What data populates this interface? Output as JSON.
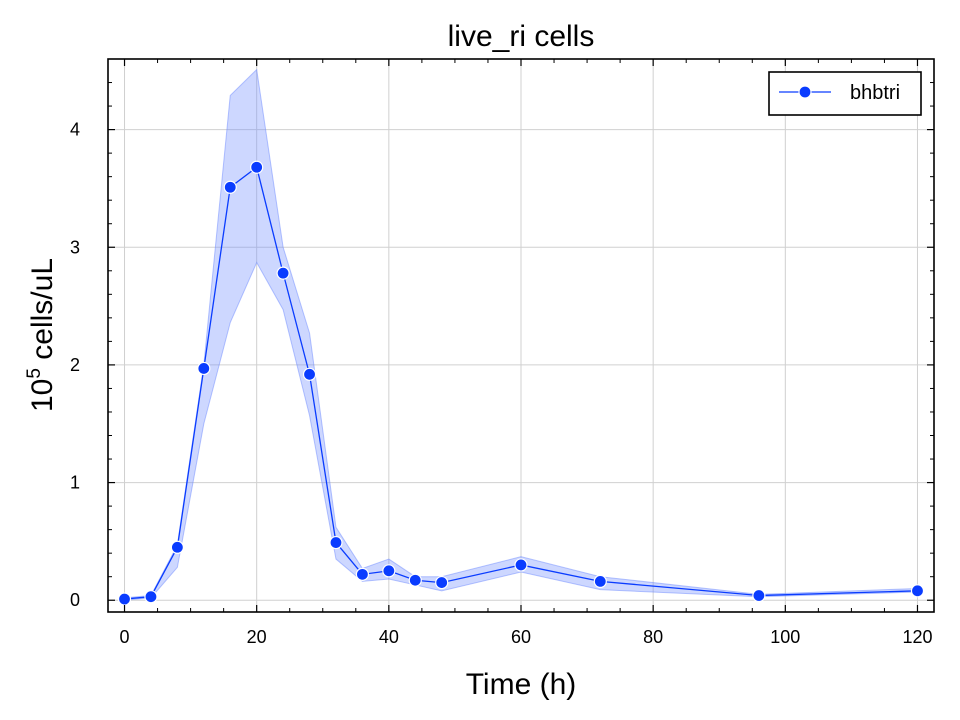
{
  "chart_data": {
    "type": "line",
    "title": "live_ri cells",
    "xlabel": "Time (h)",
    "ylabel": {
      "base": "10",
      "exponent": "5",
      "rest": " cells/uL"
    },
    "xlim": [
      -2.5,
      122.5
    ],
    "ylim": [
      -0.1,
      4.6
    ],
    "xticks": [
      0,
      20,
      40,
      60,
      80,
      100,
      120
    ],
    "yticks": [
      0,
      1,
      2,
      3,
      4
    ],
    "grid": true,
    "legend_position": "top-right",
    "series": [
      {
        "name": "bhbtri",
        "color": "#0a3cff",
        "band_color": "#6f8cff",
        "x": [
          0,
          4,
          8,
          12,
          16,
          20,
          24,
          28,
          32,
          36,
          40,
          44,
          48,
          60,
          72,
          96,
          120
        ],
        "y": [
          0.01,
          0.03,
          0.45,
          1.97,
          3.51,
          3.68,
          2.78,
          1.92,
          0.49,
          0.22,
          0.25,
          0.17,
          0.15,
          0.3,
          0.16,
          0.04,
          0.08
        ],
        "lower": [
          0.0,
          0.02,
          0.28,
          1.5,
          2.36,
          2.87,
          2.47,
          1.57,
          0.35,
          0.16,
          0.18,
          0.13,
          0.08,
          0.24,
          0.09,
          0.03,
          0.07
        ],
        "upper": [
          0.02,
          0.04,
          0.47,
          2.0,
          4.29,
          4.51,
          3.0,
          2.27,
          0.62,
          0.27,
          0.35,
          0.2,
          0.2,
          0.37,
          0.2,
          0.05,
          0.1
        ]
      }
    ]
  }
}
